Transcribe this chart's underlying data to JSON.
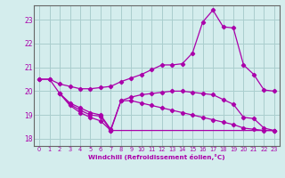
{
  "xlabel": "Windchill (Refroidissement éolien,°C)",
  "bg_color": "#d4eded",
  "grid_color": "#aacece",
  "line_color": "#aa00aa",
  "spine_color": "#888888",
  "xlim": [
    -0.5,
    23.5
  ],
  "ylim": [
    17.7,
    23.6
  ],
  "yticks": [
    18,
    19,
    20,
    21,
    22,
    23
  ],
  "xticks": [
    0,
    1,
    2,
    3,
    4,
    5,
    6,
    7,
    8,
    9,
    10,
    11,
    12,
    13,
    14,
    15,
    16,
    17,
    18,
    19,
    20,
    21,
    22,
    23
  ],
  "line1_x": [
    0,
    1,
    2,
    3,
    4,
    5,
    6,
    7,
    8,
    9,
    10,
    11,
    12,
    13,
    14,
    15,
    16,
    17,
    18,
    19,
    20,
    21,
    22,
    23
  ],
  "line1_y": [
    20.5,
    20.5,
    20.3,
    20.2,
    20.1,
    20.1,
    20.15,
    20.2,
    20.4,
    20.55,
    20.7,
    20.9,
    21.1,
    21.1,
    21.15,
    21.6,
    22.9,
    23.4,
    22.7,
    22.65,
    21.1,
    20.7,
    20.05,
    20.0
  ],
  "line2_x": [
    0,
    1,
    2,
    3,
    4,
    5,
    6,
    7,
    8,
    9,
    10,
    11,
    12,
    13,
    14,
    15,
    16,
    17,
    18,
    19,
    20,
    21,
    22,
    23
  ],
  "line2_y": [
    20.5,
    20.5,
    19.9,
    19.5,
    19.3,
    19.1,
    19.0,
    18.4,
    19.6,
    19.75,
    19.85,
    19.9,
    19.95,
    20.0,
    20.0,
    19.95,
    19.9,
    19.85,
    19.65,
    19.45,
    18.9,
    18.85,
    18.45,
    18.35
  ],
  "line3_x": [
    2,
    3,
    4,
    5,
    6,
    7,
    8,
    9,
    10,
    11,
    12,
    13,
    14,
    15,
    16,
    17,
    18,
    19,
    20,
    21,
    22,
    23
  ],
  "line3_y": [
    19.9,
    19.4,
    19.1,
    18.9,
    18.75,
    18.35,
    19.6,
    19.6,
    19.5,
    19.4,
    19.3,
    19.2,
    19.1,
    19.0,
    18.9,
    18.8,
    18.7,
    18.6,
    18.45,
    18.4,
    18.35,
    18.35
  ],
  "line4_x": [
    2,
    3,
    4,
    5,
    6,
    7,
    23
  ],
  "line4_y": [
    19.9,
    19.45,
    19.2,
    19.0,
    18.95,
    18.35,
    18.35
  ]
}
